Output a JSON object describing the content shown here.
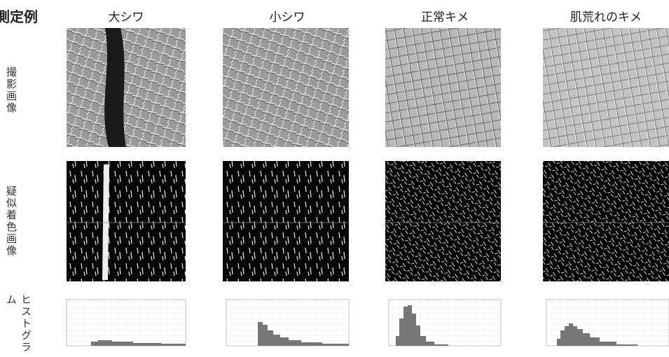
{
  "header": {
    "title": "測定例"
  },
  "columns": [
    {
      "label": "大シワ"
    },
    {
      "label": "小シワ"
    },
    {
      "label": "正常キメ"
    },
    {
      "label": "肌荒れのキメ"
    }
  ],
  "rows": [
    {
      "label": "撮影画像"
    },
    {
      "label": "疑似着色画像"
    },
    {
      "label": "ヒストグラム"
    }
  ]
}
